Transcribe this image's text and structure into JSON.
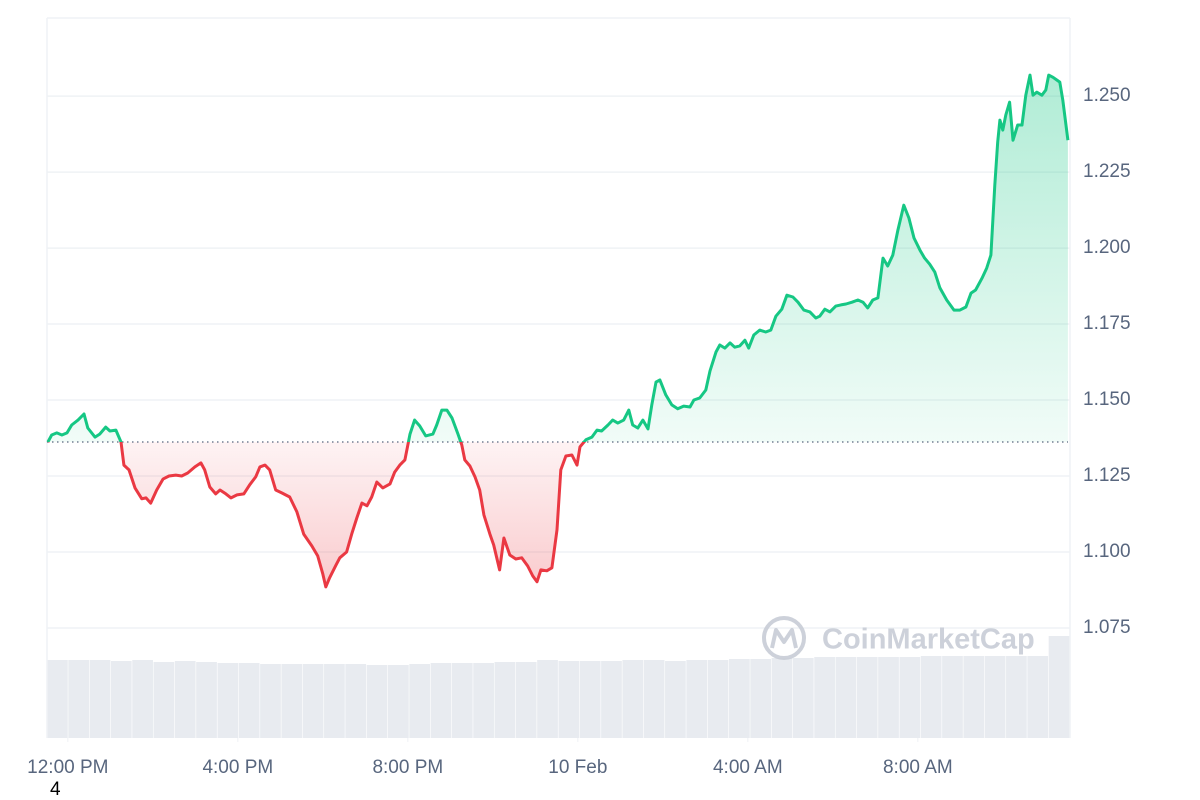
{
  "chart_data": {
    "type": "line",
    "x": [
      -0.47,
      -0.38,
      -0.26,
      -0.14,
      -0.02,
      0.09,
      0.24,
      0.38,
      0.47,
      0.64,
      0.75,
      0.89,
      0.99,
      1.13,
      1.25,
      1.32,
      1.44,
      1.58,
      1.74,
      1.84,
      1.95,
      2.09,
      2.24,
      2.38,
      2.54,
      2.68,
      2.82,
      2.99,
      3.13,
      3.22,
      3.34,
      3.48,
      3.58,
      3.72,
      3.84,
      3.98,
      4.14,
      4.28,
      4.42,
      4.52,
      4.64,
      4.75,
      4.89,
      5.04,
      5.22,
      5.39,
      5.55,
      5.74,
      5.88,
      6.0,
      6.07,
      6.16,
      6.31,
      6.4,
      6.56,
      6.68,
      6.8,
      6.92,
      7.04,
      7.15,
      7.27,
      7.41,
      7.58,
      7.69,
      7.81,
      7.93,
      8.05,
      8.16,
      8.28,
      8.42,
      8.59,
      8.68,
      8.8,
      8.92,
      9.04,
      9.18,
      9.27,
      9.34,
      9.46,
      9.58,
      9.69,
      9.79,
      9.93,
      10.02,
      10.16,
      10.26,
      10.4,
      10.54,
      10.68,
      10.82,
      10.94,
      11.04,
      11.13,
      11.27,
      11.39,
      11.51,
      11.6,
      11.72,
      11.86,
      11.98,
      12.05,
      12.19,
      12.33,
      12.45,
      12.56,
      12.71,
      12.82,
      12.94,
      13.08,
      13.2,
      13.29,
      13.41,
      13.53,
      13.65,
      13.74,
      13.84,
      13.93,
      14.07,
      14.21,
      14.35,
      14.49,
      14.64,
      14.73,
      14.87,
      15.01,
      15.11,
      15.25,
      15.34,
      15.46,
      15.58,
      15.69,
      15.81,
      15.93,
      16.02,
      16.14,
      16.28,
      16.42,
      16.54,
      16.66,
      16.8,
      16.92,
      17.06,
      17.18,
      17.32,
      17.46,
      17.6,
      17.69,
      17.81,
      17.93,
      18.07,
      18.19,
      18.31,
      18.45,
      18.59,
      18.71,
      18.82,
      18.94,
      19.06,
      19.18,
      19.29,
      19.41,
      19.53,
      19.67,
      19.79,
      19.91,
      20.05,
      20.16,
      20.28,
      20.4,
      20.52,
      20.68,
      20.85,
      20.99,
      21.13,
      21.25,
      21.36,
      21.51,
      21.62,
      21.72,
      21.81,
      21.88,
      21.93,
      22.0,
      22.07,
      22.16,
      22.24,
      22.35,
      22.45,
      22.54,
      22.64,
      22.71,
      22.8,
      22.92,
      23.01,
      23.08,
      23.18,
      23.27,
      23.34,
      23.41,
      23.53
    ],
    "values": [
      1.1362,
      1.1385,
      1.1392,
      1.1385,
      1.1392,
      1.1418,
      1.1434,
      1.1454,
      1.1408,
      1.1378,
      1.1388,
      1.1411,
      1.1398,
      1.1401,
      1.1362,
      1.1286,
      1.127,
      1.1211,
      1.1175,
      1.1178,
      1.1161,
      1.1204,
      1.124,
      1.125,
      1.1253,
      1.125,
      1.126,
      1.128,
      1.1293,
      1.127,
      1.1214,
      1.1191,
      1.1204,
      1.1191,
      1.1178,
      1.1188,
      1.1191,
      1.1221,
      1.1247,
      1.128,
      1.1286,
      1.127,
      1.1204,
      1.1194,
      1.1181,
      1.1132,
      1.1059,
      1.102,
      1.0987,
      1.0928,
      1.0885,
      1.0915,
      1.0957,
      1.0981,
      1.1,
      1.1059,
      1.1112,
      1.1161,
      1.1152,
      1.1181,
      1.123,
      1.1211,
      1.1224,
      1.1263,
      1.1286,
      1.1303,
      1.1388,
      1.1434,
      1.1415,
      1.1382,
      1.1388,
      1.1418,
      1.1467,
      1.1467,
      1.1441,
      1.1388,
      1.1352,
      1.1303,
      1.1283,
      1.1247,
      1.1204,
      1.1122,
      1.1059,
      1.1023,
      1.0941,
      1.1046,
      1.099,
      1.0977,
      1.0981,
      1.0954,
      1.0921,
      1.0902,
      1.0941,
      1.0938,
      1.0948,
      1.1073,
      1.127,
      1.1316,
      1.1319,
      1.1286,
      1.1346,
      1.1369,
      1.1378,
      1.1401,
      1.1398,
      1.1418,
      1.1434,
      1.1424,
      1.1434,
      1.1467,
      1.1418,
      1.1408,
      1.1434,
      1.1405,
      1.1484,
      1.1559,
      1.1566,
      1.1517,
      1.1484,
      1.1471,
      1.148,
      1.1477,
      1.15,
      1.1507,
      1.1533,
      1.1596,
      1.1658,
      1.1681,
      1.1671,
      1.1688,
      1.1674,
      1.1678,
      1.1697,
      1.1671,
      1.1714,
      1.173,
      1.1724,
      1.173,
      1.1776,
      1.1799,
      1.1845,
      1.1839,
      1.1822,
      1.1796,
      1.179,
      1.177,
      1.1776,
      1.1799,
      1.179,
      1.1809,
      1.1813,
      1.1816,
      1.1822,
      1.1829,
      1.1822,
      1.1803,
      1.1829,
      1.1836,
      1.1967,
      1.1941,
      1.1977,
      1.2059,
      1.2141,
      1.2099,
      1.2033,
      1.1993,
      1.1967,
      1.1947,
      1.1921,
      1.1869,
      1.1829,
      1.1796,
      1.1796,
      1.1806,
      1.1852,
      1.1862,
      1.1901,
      1.1934,
      1.1977,
      1.2207,
      1.2349,
      1.2421,
      1.2388,
      1.2438,
      1.248,
      1.2355,
      1.2405,
      1.2405,
      1.2503,
      1.2569,
      1.2503,
      1.2513,
      1.2503,
      1.252,
      1.2569,
      1.2562,
      1.2553,
      1.2546,
      1.2487,
      1.2355
    ],
    "baseline": 1.1362,
    "colors": {
      "up": "#16c784",
      "down": "#ea3943",
      "volume": "#e8ebf0"
    },
    "xlim": [
      -0.49,
      23.58
    ],
    "xticks": [
      {
        "value": 0,
        "label": "12:00 PM"
      },
      {
        "value": 4,
        "label": "4:00 PM"
      },
      {
        "value": 8,
        "label": "8:00 PM"
      },
      {
        "value": 12,
        "label": "10 Feb"
      },
      {
        "value": 16,
        "label": "4:00 AM"
      },
      {
        "value": 20,
        "label": "8:00 AM"
      }
    ],
    "ylim": [
      1.0388,
      1.2757
    ],
    "yticks": [
      1.075,
      {
        "value": 1.1,
        "label": "1.100"
      },
      1.125,
      {
        "value": 1.15,
        "label": "1.150"
      },
      1.175,
      {
        "value": 1.2,
        "label": "1.200"
      },
      1.225,
      {
        "value": 1.25,
        "label": "1.250"
      }
    ],
    "grid": true,
    "volume": {
      "values": [
        78,
        78,
        78,
        77,
        78,
        76,
        77,
        76,
        75,
        75,
        74,
        74,
        74,
        74,
        74,
        73,
        73,
        74,
        75,
        75,
        75,
        76,
        76,
        78,
        77,
        77,
        77,
        78,
        78,
        77,
        78,
        78,
        79,
        79,
        80,
        80,
        81,
        81,
        81,
        81,
        81,
        82,
        82,
        82,
        82,
        82,
        82,
        102
      ],
      "ylim": [
        0,
        110
      ]
    },
    "watermark": "CoinMarketCap",
    "footnote": "4"
  }
}
